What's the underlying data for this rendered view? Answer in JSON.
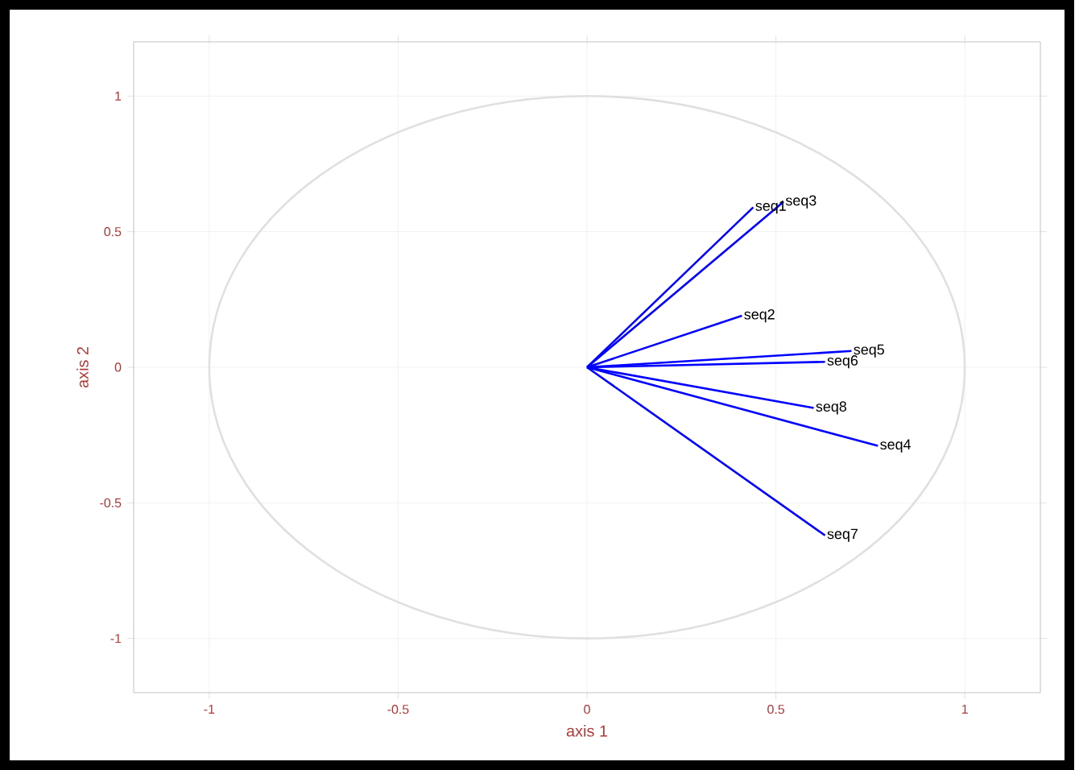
{
  "chart_data": {
    "type": "line",
    "xlabel": "axis 1",
    "ylabel": "axis 2",
    "xlim": [
      -1.2,
      1.2
    ],
    "ylim": [
      -1.2,
      1.2
    ],
    "xticks": [
      -1,
      -0.5,
      0,
      0.5,
      1
    ],
    "yticks": [
      -1,
      -0.5,
      0,
      0.5,
      1
    ],
    "grid": true,
    "legend": false,
    "marker": "none",
    "line_style": "solid",
    "series": [
      {
        "name": "seq1",
        "color": "#0000ff",
        "x": [
          0,
          0.44
        ],
        "values": [
          0,
          0.59
        ]
      },
      {
        "name": "seq2",
        "color": "#0000ff",
        "x": [
          0,
          0.41
        ],
        "values": [
          0,
          0.19
        ]
      },
      {
        "name": "seq3",
        "color": "#0000ff",
        "x": [
          0,
          0.52
        ],
        "values": [
          0,
          0.61
        ]
      },
      {
        "name": "seq4",
        "color": "#0000ff",
        "x": [
          0,
          0.77
        ],
        "values": [
          0,
          -0.29
        ]
      },
      {
        "name": "seq5",
        "color": "#0000ff",
        "x": [
          0,
          0.7
        ],
        "values": [
          0,
          0.06
        ]
      },
      {
        "name": "seq6",
        "color": "#0000ff",
        "x": [
          0,
          0.63
        ],
        "values": [
          0,
          0.02
        ]
      },
      {
        "name": "seq7",
        "color": "#0000ff",
        "x": [
          0,
          0.63
        ],
        "values": [
          0,
          -0.62
        ]
      },
      {
        "name": "seq8",
        "color": "#0000ff",
        "x": [
          0,
          0.6
        ],
        "values": [
          0,
          -0.15
        ]
      }
    ]
  }
}
